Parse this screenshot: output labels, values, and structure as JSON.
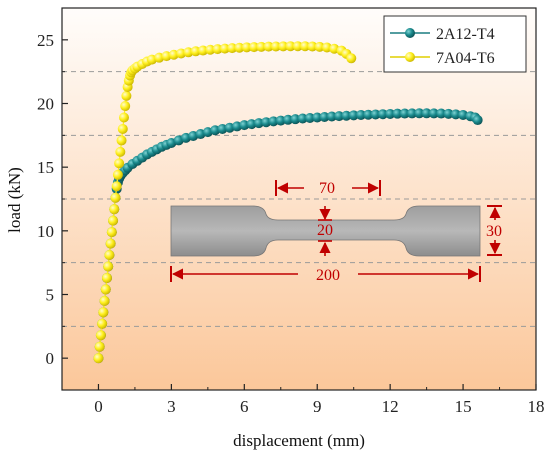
{
  "chart_data": {
    "type": "scatter",
    "xlabel": "displacement (mm)",
    "ylabel": "load (kN)",
    "xlim": [
      -1.5,
      18
    ],
    "ylim": [
      -2.5,
      27.5
    ],
    "xticks": [
      0,
      3,
      6,
      9,
      12,
      15,
      18
    ],
    "yticks": [
      0,
      5,
      10,
      15,
      20,
      25
    ],
    "grid": "horizontal dashed",
    "legend_position": "top-right",
    "series": [
      {
        "name": "2A12-T4",
        "color": "#1a7d80",
        "x": [
          0.0,
          0.05,
          0.1,
          0.15,
          0.2,
          0.25,
          0.3,
          0.35,
          0.4,
          0.45,
          0.5,
          0.55,
          0.6,
          0.65,
          0.7,
          0.75,
          0.8,
          0.85,
          0.9,
          0.95,
          1.0,
          1.1,
          1.2,
          1.4,
          1.6,
          1.8,
          2.0,
          2.2,
          2.4,
          2.6,
          2.8,
          3.0,
          3.3,
          3.6,
          3.9,
          4.2,
          4.5,
          4.8,
          5.1,
          5.4,
          5.7,
          6.0,
          6.3,
          6.6,
          6.9,
          7.2,
          7.5,
          7.8,
          8.1,
          8.4,
          8.7,
          9.0,
          9.3,
          9.6,
          9.9,
          10.2,
          10.5,
          10.8,
          11.1,
          11.4,
          11.7,
          12.0,
          12.3,
          12.6,
          12.9,
          13.2,
          13.5,
          13.8,
          14.1,
          14.4,
          14.7,
          15.0,
          15.3,
          15.5,
          15.6
        ],
        "y": [
          0.0,
          0.9,
          1.8,
          2.7,
          3.6,
          4.5,
          5.4,
          6.3,
          7.2,
          8.1,
          9.0,
          9.9,
          10.8,
          11.7,
          12.6,
          13.3,
          13.8,
          14.1,
          14.3,
          14.45,
          14.55,
          14.75,
          14.95,
          15.25,
          15.5,
          15.75,
          16.0,
          16.2,
          16.4,
          16.6,
          16.75,
          16.9,
          17.1,
          17.3,
          17.45,
          17.6,
          17.75,
          17.9,
          18.0,
          18.1,
          18.2,
          18.3,
          18.38,
          18.46,
          18.53,
          18.6,
          18.66,
          18.72,
          18.77,
          18.82,
          18.86,
          18.9,
          18.94,
          18.98,
          19.01,
          19.04,
          19.07,
          19.1,
          19.12,
          19.14,
          19.16,
          19.18,
          19.2,
          19.21,
          19.22,
          19.23,
          19.23,
          19.22,
          19.21,
          19.19,
          19.15,
          19.1,
          19.0,
          18.9,
          18.7
        ]
      },
      {
        "name": "7A04-T6",
        "color": "#ffee22",
        "x": [
          0.0,
          0.05,
          0.1,
          0.15,
          0.2,
          0.25,
          0.3,
          0.35,
          0.4,
          0.45,
          0.5,
          0.55,
          0.6,
          0.65,
          0.7,
          0.75,
          0.8,
          0.85,
          0.9,
          0.95,
          1.0,
          1.05,
          1.1,
          1.15,
          1.2,
          1.25,
          1.3,
          1.35,
          1.4,
          1.5,
          1.6,
          1.8,
          2.0,
          2.2,
          2.5,
          2.8,
          3.1,
          3.4,
          3.7,
          4.0,
          4.3,
          4.6,
          4.9,
          5.2,
          5.5,
          5.8,
          6.1,
          6.4,
          6.7,
          7.0,
          7.3,
          7.6,
          7.9,
          8.2,
          8.5,
          8.8,
          9.1,
          9.4,
          9.7,
          10.0,
          10.2,
          10.4
        ],
        "y": [
          0.0,
          0.9,
          1.8,
          2.7,
          3.6,
          4.5,
          5.4,
          6.3,
          7.2,
          8.1,
          9.0,
          9.9,
          10.8,
          11.7,
          12.6,
          13.5,
          14.4,
          15.3,
          16.2,
          17.1,
          18.0,
          18.9,
          19.8,
          20.6,
          21.3,
          21.8,
          22.2,
          22.45,
          22.6,
          22.75,
          22.9,
          23.1,
          23.3,
          23.45,
          23.6,
          23.72,
          23.83,
          23.93,
          24.02,
          24.1,
          24.16,
          24.22,
          24.27,
          24.31,
          24.35,
          24.38,
          24.41,
          24.43,
          24.45,
          24.47,
          24.48,
          24.49,
          24.5,
          24.5,
          24.5,
          24.48,
          24.45,
          24.4,
          24.3,
          24.15,
          23.9,
          23.55
        ]
      }
    ],
    "inset": {
      "description_label": "specimen",
      "dimensions": [
        "70",
        "20",
        "30",
        "200"
      ]
    }
  }
}
